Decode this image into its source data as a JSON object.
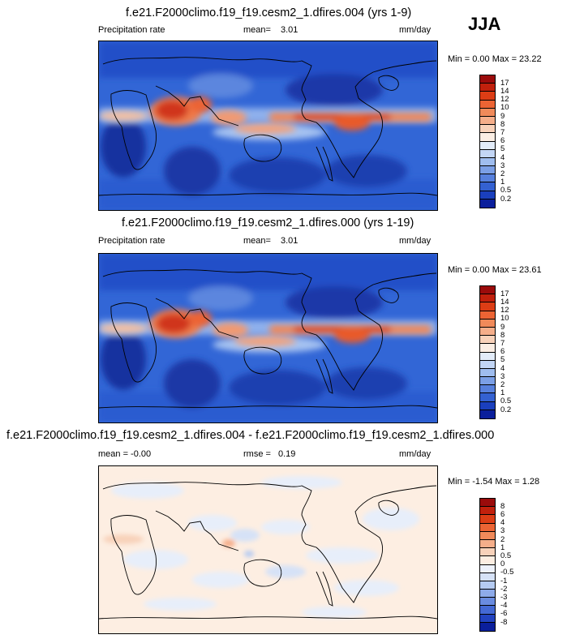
{
  "season": "JJA",
  "panels": [
    {
      "title": "f.e21.F2000climo.f19_f19.cesm2_1.dfires.004 (yrs 1-9)",
      "left_label": "Precipitation rate",
      "mid_label": "mean=",
      "mid_value": "3.01",
      "units": "mm/day",
      "minmax": "Min =  0.00 Max = 23.22"
    },
    {
      "title": "f.e21.F2000climo.f19_f19.cesm2_1.dfires.000 (yrs 1-19)",
      "left_label": "Precipitation rate",
      "mid_label": "mean=",
      "mid_value": "3.01",
      "units": "mm/day",
      "minmax": "Min =  0.00 Max = 23.61"
    },
    {
      "title": "f.e21.F2000climo.f19_f19.cesm2_1.dfires.004 - f.e21.F2000climo.f19_f19.cesm2_1.dfires.000",
      "left_label": "mean = -0.00",
      "mid_label": "rmse =",
      "mid_value": "0.19",
      "units": "mm/day",
      "minmax": "Min = -1.54 Max =  1.28"
    }
  ],
  "chart_data": [
    {
      "type": "heatmap",
      "title": "f.e21.F2000climo.f19_f19.cesm2_1.dfires.004 (yrs 1-9)",
      "variable": "Precipitation rate",
      "units": "mm/day",
      "mean": 3.01,
      "min": 0.0,
      "max": 23.22,
      "colorbar_levels": [
        "17",
        "14",
        "12",
        "10",
        "9",
        "8",
        "7",
        "6",
        "5",
        "4",
        "3",
        "2",
        "1",
        "0.5",
        "0.2"
      ],
      "colorbar_colors": [
        "#9b0b0b",
        "#c1200c",
        "#dc3d15",
        "#ec6434",
        "#f08a5a",
        "#f5ae8a",
        "#f8d2ba",
        "#fbeee4",
        "#e3ecf9",
        "#c3d6f5",
        "#9fbdef",
        "#7b9fe6",
        "#5780dd",
        "#3461d1",
        "#1a3fbd",
        "#0b1f9c"
      ]
    },
    {
      "type": "heatmap",
      "title": "f.e21.F2000climo.f19_f19.cesm2_1.dfires.000 (yrs 1-19)",
      "variable": "Precipitation rate",
      "units": "mm/day",
      "mean": 3.01,
      "min": 0.0,
      "max": 23.61,
      "colorbar_levels": [
        "17",
        "14",
        "12",
        "10",
        "9",
        "8",
        "7",
        "6",
        "5",
        "4",
        "3",
        "2",
        "1",
        "0.5",
        "0.2"
      ],
      "colorbar_colors": [
        "#9b0b0b",
        "#c1200c",
        "#dc3d15",
        "#ec6434",
        "#f08a5a",
        "#f5ae8a",
        "#f8d2ba",
        "#fbeee4",
        "#e3ecf9",
        "#c3d6f5",
        "#9fbdef",
        "#7b9fe6",
        "#5780dd",
        "#3461d1",
        "#1a3fbd",
        "#0b1f9c"
      ]
    },
    {
      "type": "heatmap",
      "title": "f.e21.F2000climo.f19_f19.cesm2_1.dfires.004 - f.e21.F2000climo.f19_f19.cesm2_1.dfires.000",
      "units": "mm/day",
      "mean": -0.0,
      "rmse": 0.19,
      "min": -1.54,
      "max": 1.28,
      "colorbar_levels": [
        "8",
        "6",
        "4",
        "3",
        "2",
        "1",
        "0.5",
        "0",
        "-0.5",
        "-1",
        "-2",
        "-3",
        "-4",
        "-6",
        "-8"
      ],
      "colorbar_colors": [
        "#9b0b0b",
        "#c1200c",
        "#dc3d15",
        "#ec6434",
        "#f08a5a",
        "#f5ae8a",
        "#f8d2ba",
        "#fdeee2",
        "#eef2fb",
        "#d6e2f7",
        "#b5cbf2",
        "#8eabea",
        "#6a8ce0",
        "#4469d4",
        "#2243c0",
        "#0b1f9c"
      ]
    }
  ]
}
